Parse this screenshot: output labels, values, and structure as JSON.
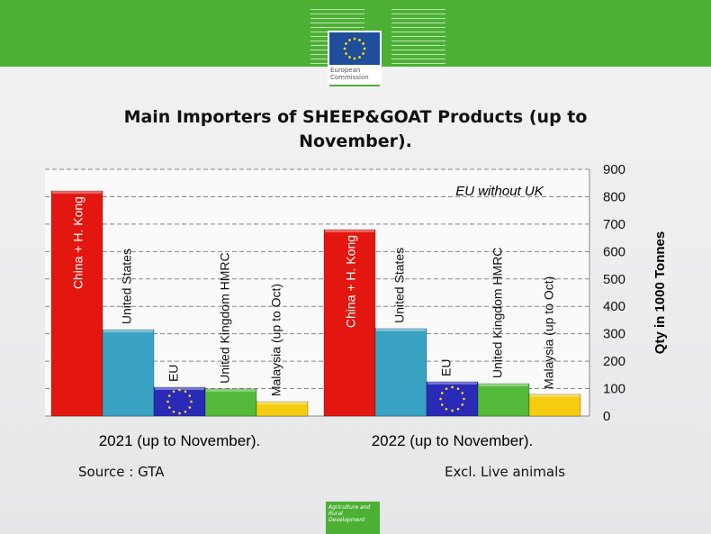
{
  "header": {
    "logo_text": "European Commission"
  },
  "footer": {
    "source": "Source : GTA",
    "note": "Excl. Live animals",
    "badge": "Agriculture and Rural Development"
  },
  "chart_data": {
    "type": "bar",
    "title": "Main Importers of SHEEP&GOAT Products (up to November).",
    "ylabel": "Qty in 1000 Tonnes",
    "ylim": [
      0,
      900
    ],
    "yticks": [
      "0",
      "100",
      "200",
      "300",
      "400",
      "500",
      "600",
      "700",
      "800",
      "900"
    ],
    "annotation": "EU without UK",
    "grid": true,
    "categories": [
      "2021 (up to November).",
      "2022 (up to November)."
    ],
    "series": [
      {
        "name": "China + H. Kong",
        "color": "#e3170f",
        "values": [
          821,
          680
        ]
      },
      {
        "name": "United States",
        "color": "#3aa3c4",
        "values": [
          315,
          319
        ]
      },
      {
        "name": "EU",
        "color": "#2a2ab8",
        "values": [
          105,
          125
        ]
      },
      {
        "name": "United Kingdom HMRC",
        "color": "#52b93a",
        "values": [
          99,
          118
        ]
      },
      {
        "name": "Malaysia (up to Oct)",
        "color": "#f5cc10",
        "values": [
          52,
          79
        ]
      }
    ]
  }
}
